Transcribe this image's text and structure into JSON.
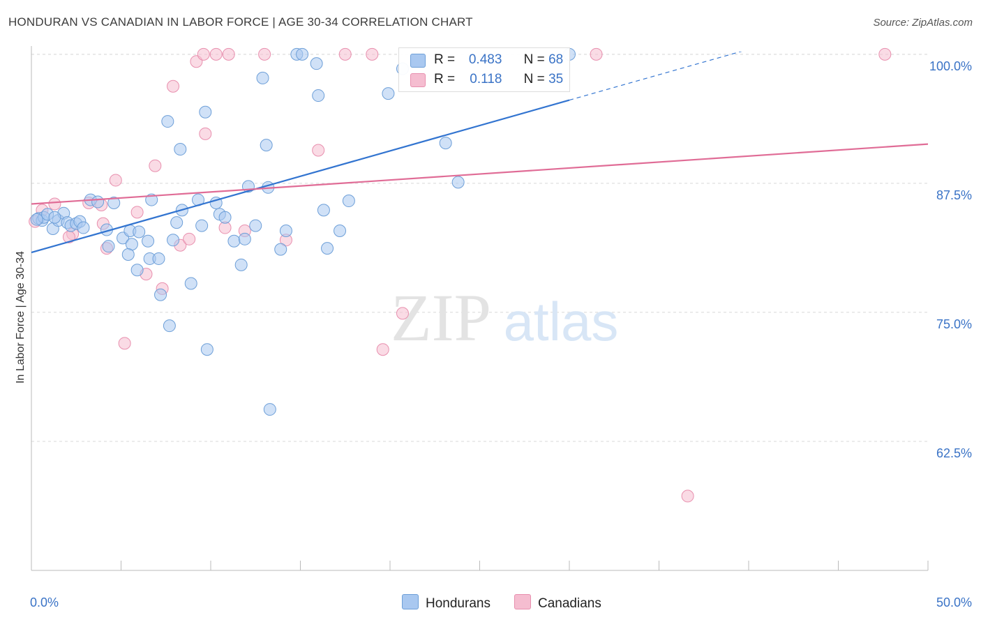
{
  "title": "HONDURAN VS CANADIAN IN LABOR FORCE | AGE 30-34 CORRELATION CHART",
  "source": "Source: ZipAtlas.com",
  "watermark": {
    "zip": "ZIP",
    "atlas": "atlas"
  },
  "legend_stats": [
    {
      "r_label": "R =",
      "r_value": "0.483",
      "n_label": "N =",
      "n_value": "68"
    },
    {
      "r_label": "R =",
      "r_value": "0.118",
      "n_label": "N =",
      "n_value": "35"
    }
  ],
  "colors": {
    "honduran_fill": "#a9c8f0",
    "honduran_stroke": "#6d9fd8",
    "honduran_line": "#3274d0",
    "canadian_fill": "#f5bdd0",
    "canadian_stroke": "#e88fae",
    "canadian_line": "#e06c96",
    "tick_label": "#3a73c6",
    "grid": "#d8d8d8"
  },
  "chart_data": {
    "type": "scatter",
    "title": "HONDURAN VS CANADIAN IN LABOR FORCE | AGE 30-34 CORRELATION CHART",
    "xlabel": "",
    "ylabel": "In Labor Force | Age 30-34",
    "xlim": [
      0,
      50
    ],
    "ylim": [
      50,
      100.8
    ],
    "x_tick_labels": [
      "0.0%",
      "50.0%"
    ],
    "y_ticks": [
      62.5,
      75.0,
      87.5,
      100.0
    ],
    "y_tick_labels": [
      "62.5%",
      "75.0%",
      "87.5%",
      "100.0%"
    ],
    "grid": true,
    "legend_position": "top-center",
    "series": [
      {
        "name": "Hondurans",
        "points": [
          [
            0.4,
            84.1
          ],
          [
            0.6,
            83.9
          ],
          [
            0.7,
            84.2
          ],
          [
            0.9,
            84.5
          ],
          [
            1.2,
            83.1
          ],
          [
            1.5,
            83.9
          ],
          [
            1.8,
            84.6
          ],
          [
            2.0,
            83.7
          ],
          [
            2.2,
            83.4
          ],
          [
            2.5,
            83.6
          ],
          [
            2.7,
            83.8
          ],
          [
            2.9,
            83.2
          ],
          [
            3.3,
            85.9
          ],
          [
            3.7,
            85.7
          ],
          [
            4.2,
            83.0
          ],
          [
            4.6,
            85.6
          ],
          [
            4.3,
            81.4
          ],
          [
            5.1,
            82.2
          ],
          [
            5.5,
            82.9
          ],
          [
            5.6,
            81.6
          ],
          [
            5.4,
            80.6
          ],
          [
            5.9,
            79.1
          ],
          [
            6.0,
            82.8
          ],
          [
            6.5,
            81.9
          ],
          [
            6.6,
            80.2
          ],
          [
            6.7,
            85.9
          ],
          [
            7.1,
            80.2
          ],
          [
            7.2,
            76.7
          ],
          [
            7.6,
            93.5
          ],
          [
            7.7,
            73.7
          ],
          [
            7.9,
            82.0
          ],
          [
            8.1,
            83.7
          ],
          [
            8.3,
            90.8
          ],
          [
            8.4,
            84.9
          ],
          [
            8.9,
            77.8
          ],
          [
            9.3,
            85.9
          ],
          [
            9.5,
            83.4
          ],
          [
            9.7,
            94.4
          ],
          [
            9.8,
            71.4
          ],
          [
            10.3,
            85.6
          ],
          [
            10.5,
            84.5
          ],
          [
            10.8,
            84.2
          ],
          [
            11.3,
            81.9
          ],
          [
            11.7,
            79.6
          ],
          [
            11.9,
            82.1
          ],
          [
            12.1,
            87.2
          ],
          [
            12.5,
            83.4
          ],
          [
            12.9,
            97.7
          ],
          [
            13.1,
            91.2
          ],
          [
            13.2,
            87.1
          ],
          [
            13.3,
            65.6
          ],
          [
            13.9,
            81.1
          ],
          [
            14.2,
            82.9
          ],
          [
            14.8,
            100.0
          ],
          [
            15.1,
            100.0
          ],
          [
            15.9,
            99.1
          ],
          [
            16.0,
            96.0
          ],
          [
            16.3,
            84.9
          ],
          [
            16.5,
            81.2
          ],
          [
            17.2,
            82.9
          ],
          [
            17.7,
            85.8
          ],
          [
            19.9,
            96.2
          ],
          [
            20.7,
            98.6
          ],
          [
            23.1,
            91.4
          ],
          [
            23.8,
            87.6
          ],
          [
            30.0,
            100.0
          ],
          [
            0.3,
            84.0
          ],
          [
            1.3,
            84.2
          ]
        ],
        "trend": {
          "x_start": 0,
          "y_start": 80.8,
          "x_end": 50,
          "y_end": 105.4,
          "solid_until_x": 30
        }
      },
      {
        "name": "Canadians",
        "points": [
          [
            0.2,
            83.8
          ],
          [
            0.6,
            84.9
          ],
          [
            1.3,
            85.5
          ],
          [
            2.3,
            82.6
          ],
          [
            3.2,
            85.6
          ],
          [
            3.9,
            85.4
          ],
          [
            4.0,
            83.6
          ],
          [
            4.2,
            81.2
          ],
          [
            4.7,
            87.8
          ],
          [
            5.9,
            84.7
          ],
          [
            6.4,
            78.7
          ],
          [
            6.9,
            89.2
          ],
          [
            7.3,
            77.3
          ],
          [
            7.9,
            96.9
          ],
          [
            8.3,
            81.5
          ],
          [
            8.8,
            82.1
          ],
          [
            9.2,
            99.3
          ],
          [
            9.6,
            100.0
          ],
          [
            9.7,
            92.3
          ],
          [
            10.3,
            100.0
          ],
          [
            10.8,
            83.2
          ],
          [
            11.0,
            100.0
          ],
          [
            11.9,
            82.9
          ],
          [
            13.0,
            100.0
          ],
          [
            14.2,
            82.0
          ],
          [
            16.0,
            90.7
          ],
          [
            17.5,
            100.0
          ],
          [
            19.0,
            100.0
          ],
          [
            19.6,
            71.4
          ],
          [
            20.7,
            74.9
          ],
          [
            31.5,
            100.0
          ],
          [
            36.6,
            57.2
          ],
          [
            47.6,
            100.0
          ],
          [
            2.1,
            82.3
          ],
          [
            5.2,
            72.0
          ]
        ],
        "trend": {
          "x_start": 0,
          "y_start": 85.5,
          "x_end": 50,
          "y_end": 91.3
        }
      }
    ]
  },
  "bottom_legend": [
    {
      "label": "Hondurans"
    },
    {
      "label": "Canadians"
    }
  ]
}
